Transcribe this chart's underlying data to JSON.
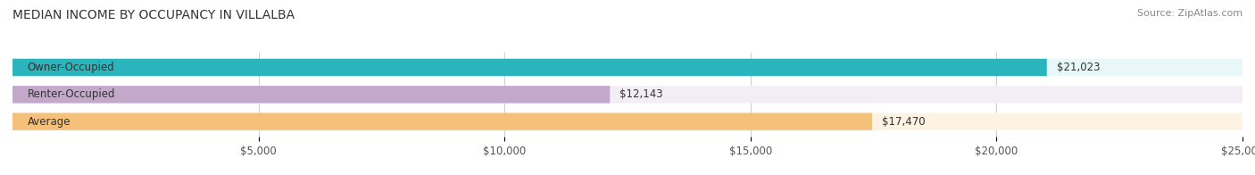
{
  "title": "MEDIAN INCOME BY OCCUPANCY IN VILLALBA",
  "source": "Source: ZipAtlas.com",
  "categories": [
    "Owner-Occupied",
    "Renter-Occupied",
    "Average"
  ],
  "values": [
    21023,
    12143,
    17470
  ],
  "bar_colors": [
    "#2ab5bc",
    "#c4a8cc",
    "#f5c07a"
  ],
  "bar_bg_colors": [
    "#e8f7f8",
    "#f3eef6",
    "#fdf3e5"
  ],
  "value_labels": [
    "$21,023",
    "$12,143",
    "$17,470"
  ],
  "xlim": [
    0,
    25000
  ],
  "xticks": [
    5000,
    10000,
    15000,
    20000,
    25000
  ],
  "xtick_labels": [
    "$5,000",
    "$10,000",
    "$15,000",
    "$20,000",
    "$25,000"
  ],
  "figsize": [
    14.06,
    1.96
  ],
  "dpi": 100,
  "title_fontsize": 10,
  "label_fontsize": 8.5,
  "value_fontsize": 8.5,
  "tick_fontsize": 8.5,
  "source_fontsize": 8
}
